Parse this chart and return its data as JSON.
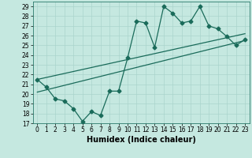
{
  "xlabel": "Humidex (Indice chaleur)",
  "bg_color": "#c5e8e0",
  "line_color": "#1a6b5a",
  "grid_color": "#aad4cc",
  "xlim": [
    -0.5,
    23.5
  ],
  "ylim": [
    17,
    29.5
  ],
  "yticks": [
    17,
    18,
    19,
    20,
    21,
    22,
    23,
    24,
    25,
    26,
    27,
    28,
    29
  ],
  "xticks": [
    0,
    1,
    2,
    3,
    4,
    5,
    6,
    7,
    8,
    9,
    10,
    11,
    12,
    13,
    14,
    15,
    16,
    17,
    18,
    19,
    20,
    21,
    22,
    23
  ],
  "data_x": [
    0,
    1,
    2,
    3,
    4,
    5,
    6,
    7,
    8,
    9,
    10,
    11,
    12,
    13,
    14,
    15,
    16,
    17,
    18,
    19,
    20,
    21,
    22,
    23
  ],
  "data_y": [
    21.5,
    20.7,
    19.5,
    19.3,
    18.5,
    17.2,
    18.2,
    17.8,
    20.3,
    20.3,
    23.7,
    27.5,
    27.3,
    24.8,
    29.0,
    28.3,
    27.3,
    27.5,
    29.0,
    27.0,
    26.7,
    25.9,
    25.0,
    25.6
  ],
  "trend1_x": [
    0,
    23
  ],
  "trend1_y": [
    21.5,
    26.2
  ],
  "trend2_x": [
    0,
    23
  ],
  "trend2_y": [
    20.2,
    25.5
  ],
  "marker_size": 2.5,
  "tick_fontsize": 5.5,
  "label_fontsize": 7.0
}
